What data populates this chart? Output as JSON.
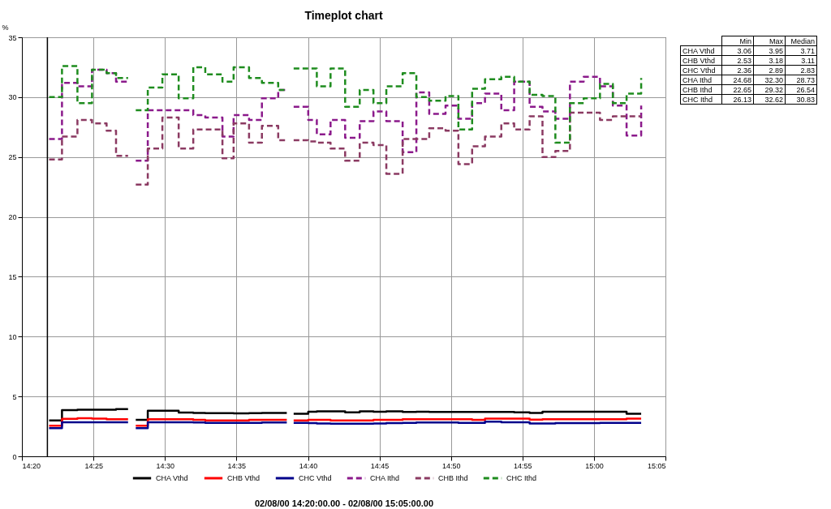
{
  "chart_data": {
    "type": "step",
    "title": "Timeplot chart",
    "xlabel": "02/08/00 14:20:00.00 - 02/08/00 15:05:00.00",
    "ylabel": "%",
    "x": [
      14.365,
      14.38,
      14.398,
      14.415,
      14.432,
      14.443,
      14.457,
      14.462,
      14.466,
      14.48,
      14.497,
      14.516,
      14.533,
      14.547,
      14.567,
      14.58,
      14.598,
      14.613,
      14.632,
      14.642,
      14.646,
      14.65,
      14.667,
      14.677,
      14.693,
      14.71,
      14.727,
      14.743,
      14.758,
      14.777,
      14.793,
      14.808,
      14.827,
      14.842,
      14.858,
      14.873,
      14.892,
      14.907,
      14.925,
      14.94,
      14.955,
      14.972,
      14.988,
      15.007,
      15.022,
      15.038,
      15.055
    ],
    "series": [
      {
        "name": "CHA Vthd",
        "color": "#000000",
        "line_style": "solid",
        "values": [
          3.0,
          3.86,
          3.9,
          3.9,
          3.9,
          3.95,
          3.95,
          null,
          3.05,
          3.8,
          3.8,
          3.65,
          3.62,
          3.6,
          3.6,
          3.58,
          3.6,
          3.62,
          3.62,
          3.62,
          null,
          3.55,
          3.72,
          3.75,
          3.75,
          3.68,
          3.75,
          3.72,
          3.75,
          3.7,
          3.72,
          3.7,
          3.7,
          3.7,
          3.7,
          3.7,
          3.7,
          3.68,
          3.62,
          3.72,
          3.72,
          3.72,
          3.72,
          3.72,
          3.72,
          3.55,
          3.55
        ]
      },
      {
        "name": "CHB Vthd",
        "color": "#ff0000",
        "line_style": "solid",
        "values": [
          2.55,
          3.13,
          3.18,
          3.15,
          3.1,
          3.1,
          3.1,
          null,
          2.55,
          3.1,
          3.1,
          3.1,
          3.05,
          3.0,
          3.0,
          3.0,
          3.05,
          3.05,
          3.05,
          3.05,
          null,
          3.0,
          3.05,
          3.05,
          3.0,
          3.0,
          3.0,
          3.05,
          3.05,
          3.1,
          3.1,
          3.1,
          3.1,
          3.1,
          3.05,
          3.15,
          3.15,
          3.15,
          3.07,
          3.1,
          3.1,
          3.1,
          3.1,
          3.1,
          3.1,
          3.15,
          3.15
        ]
      },
      {
        "name": "CHC Vthd",
        "color": "#00008b",
        "line_style": "solid",
        "values": [
          2.36,
          2.85,
          2.85,
          2.85,
          2.85,
          2.85,
          2.85,
          null,
          2.36,
          2.85,
          2.85,
          2.85,
          2.82,
          2.8,
          2.8,
          2.8,
          2.8,
          2.82,
          2.82,
          2.82,
          null,
          2.8,
          2.78,
          2.75,
          2.72,
          2.72,
          2.72,
          2.75,
          2.78,
          2.8,
          2.82,
          2.82,
          2.82,
          2.8,
          2.8,
          2.89,
          2.85,
          2.85,
          2.75,
          2.75,
          2.78,
          2.78,
          2.78,
          2.8,
          2.8,
          2.8,
          2.8
        ]
      },
      {
        "name": "CHA Ithd",
        "color": "#8b1a8b",
        "line_style": "dashed",
        "values": [
          26.5,
          31.2,
          30.9,
          32.3,
          32.0,
          31.3,
          31.3,
          null,
          24.7,
          28.9,
          28.9,
          28.9,
          28.5,
          28.3,
          26.7,
          28.5,
          28.1,
          29.9,
          30.6,
          30.6,
          null,
          29.2,
          28.1,
          26.9,
          28.1,
          26.6,
          28.0,
          28.8,
          28.0,
          25.4,
          30.4,
          28.6,
          29.3,
          28.2,
          29.5,
          30.3,
          28.9,
          31.3,
          29.2,
          28.8,
          28.2,
          31.3,
          31.7,
          30.9,
          29.3,
          26.8,
          29.3
        ]
      },
      {
        "name": "CHB Ithd",
        "color": "#8b3a62",
        "line_style": "dashed",
        "values": [
          24.8,
          26.7,
          28.1,
          27.8,
          27.2,
          25.1,
          25.1,
          null,
          22.7,
          25.7,
          28.3,
          25.7,
          27.3,
          27.3,
          24.9,
          27.8,
          26.2,
          27.6,
          26.4,
          26.4,
          null,
          26.4,
          26.3,
          26.2,
          25.7,
          24.7,
          26.2,
          26.0,
          23.6,
          26.5,
          26.5,
          27.4,
          27.2,
          24.4,
          25.9,
          26.7,
          27.8,
          27.3,
          28.4,
          25.0,
          25.5,
          28.7,
          28.7,
          28.1,
          28.4,
          28.4,
          28.4
        ]
      },
      {
        "name": "CHC Ithd",
        "color": "#1e8c1e",
        "line_style": "dashed",
        "values": [
          30.0,
          32.6,
          29.5,
          32.3,
          32.0,
          31.6,
          31.6,
          null,
          28.9,
          30.8,
          31.9,
          29.9,
          32.5,
          31.9,
          31.3,
          32.5,
          31.6,
          31.2,
          30.6,
          30.6,
          null,
          32.4,
          32.4,
          30.9,
          32.4,
          29.2,
          30.6,
          29.5,
          30.9,
          32.0,
          30.0,
          29.7,
          30.1,
          27.3,
          30.7,
          31.5,
          31.7,
          31.3,
          30.2,
          30.1,
          26.2,
          29.5,
          29.9,
          31.1,
          29.5,
          30.3,
          31.6
        ]
      }
    ],
    "xlim": [
      14.3333,
      15.0833
    ],
    "xticks": [
      {
        "value": 14.3333,
        "label": "14:20"
      },
      {
        "value": 14.4167,
        "label": "14:25"
      },
      {
        "value": 14.5,
        "label": "14:30"
      },
      {
        "value": 14.5833,
        "label": "14:35"
      },
      {
        "value": 14.6667,
        "label": "14:40"
      },
      {
        "value": 14.75,
        "label": "14:45"
      },
      {
        "value": 14.8333,
        "label": "14:50"
      },
      {
        "value": 14.9167,
        "label": "14:55"
      },
      {
        "value": 15.0,
        "label": "15:00"
      },
      {
        "value": 15.0833,
        "label": "15:05"
      }
    ],
    "ylim": [
      0,
      35
    ],
    "yticks": [
      0,
      5,
      10,
      15,
      20,
      25,
      30,
      35
    ],
    "ref_lines": [
      {
        "axis": "x",
        "value": 14.363
      }
    ],
    "grid": true,
    "legend": "bottom",
    "annotations": [
      "\tMin\tMax\tMedian",
      "CHA Vthd\t3.06\t3.95\t3.71",
      "CHB Vthd\t2.53\t3.18\t3.11",
      "CHC Vthd\t2.36\t2.89\t2.83",
      "CHA Ithd\t24.68\t32.30\t28.73",
      "CHB Ithd\t22.65\t29.32\t26.54",
      "CHC Ithd\t26.13\t32.62\t30.83"
    ]
  }
}
